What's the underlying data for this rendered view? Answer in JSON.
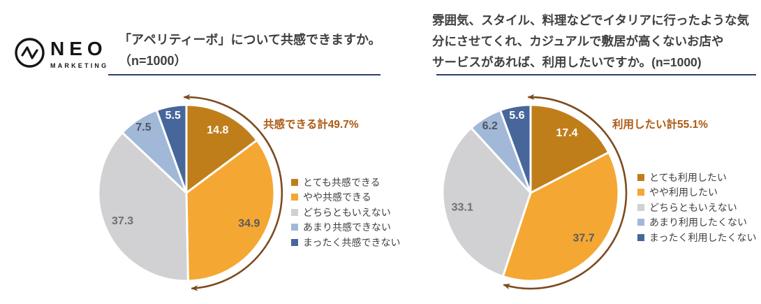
{
  "logo": {
    "name": "NEO",
    "sub": "MARKETING",
    "icon": "pulse-circle-icon"
  },
  "colors": {
    "slices": [
      "#C07E1B",
      "#F5A733",
      "#D1D1D3",
      "#A2B8D8",
      "#47679B"
    ],
    "value_label_colors": [
      "#FFFFFF",
      "#5A5A5A",
      "#6F6F6F",
      "#4E5460",
      "#FFFFFF"
    ],
    "arrow": "#7E4A1E",
    "annotation": "#AC5912",
    "underline": "#2C3F6E",
    "title_text": "#3F3F3F"
  },
  "chart_data": [
    {
      "type": "pie",
      "title_lines": [
        "「アペリティーボ」について共感できますか。",
        "（n=1000）"
      ],
      "n": 1000,
      "unit": "%",
      "categories": [
        "とても共感できる",
        "やや共感できる",
        "どちらともいえない",
        "あまり共感できない",
        "まったく共感できない"
      ],
      "values": [
        14.8,
        34.9,
        37.3,
        7.5,
        5.5
      ],
      "annotation": "共感できる計49.7%",
      "annotation_sum": 49.7,
      "start_angle": 0,
      "direction": "clockwise",
      "legend_position": "right"
    },
    {
      "type": "pie",
      "title_lines": [
        "雰囲気、スタイル、料理などでイタリアに行ったような気",
        "分にさせてくれ、カジュアルで敷居が高くないお店や",
        "サービスがあれば、利用したいですか。(n=1000)"
      ],
      "n": 1000,
      "unit": "%",
      "categories": [
        "とても利用したい",
        "やや利用したい",
        "どちらともいえない",
        "あまり利用したくない",
        "まったく利用したくない"
      ],
      "values": [
        17.4,
        37.7,
        33.1,
        6.2,
        5.6
      ],
      "annotation": "利用したい計55.1%",
      "annotation_sum": 55.1,
      "start_angle": 0,
      "direction": "clockwise",
      "legend_position": "right"
    }
  ]
}
